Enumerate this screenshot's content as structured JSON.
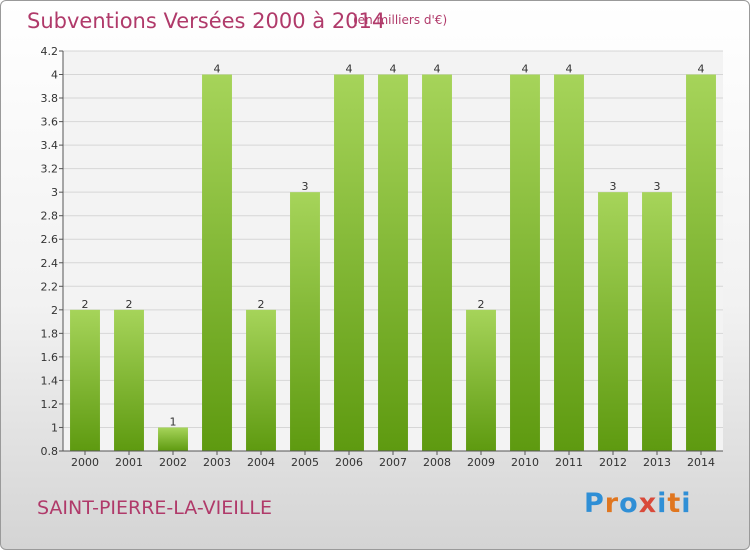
{
  "header": {
    "title": "Subventions Versées 2000 à 2014",
    "subtitle": "(en milliers d'€)"
  },
  "footer": {
    "commune": "SAINT-PIERRE-LA-VIEILLE",
    "logo": "Proxiti"
  },
  "colors": {
    "title": "#b03a6a",
    "bar_light": "#a6d45a",
    "bar_dark": "#5e9a10",
    "logo_letters": [
      "#2f8fd6",
      "#e0761f",
      "#2f8fd6",
      "#d94a3a",
      "#2f8fd6",
      "#e0761f",
      "#2f8fd6"
    ]
  },
  "chart_data": {
    "type": "bar",
    "title": "Subventions Versées 2000 à 2014",
    "subtitle": "(en milliers d'€)",
    "categories": [
      "2000",
      "2001",
      "2002",
      "2003",
      "2004",
      "2005",
      "2006",
      "2007",
      "2008",
      "2009",
      "2010",
      "2011",
      "2012",
      "2013",
      "2014"
    ],
    "values": [
      2,
      2,
      1,
      4,
      2,
      3,
      4,
      4,
      4,
      2,
      4,
      4,
      3,
      3,
      4
    ],
    "value_labels": [
      "2",
      "2",
      "1",
      "4",
      "2",
      "3",
      "4",
      "4",
      "4",
      "2",
      "4",
      "4",
      "3",
      "3",
      "4"
    ],
    "ylim": [
      0.8,
      4.2
    ],
    "yticks": [
      0.8,
      1,
      1.2,
      1.4,
      1.6,
      1.8,
      2,
      2.2,
      2.4,
      2.6,
      2.8,
      3,
      3.2,
      3.4,
      3.6,
      3.8,
      4,
      4.2
    ],
    "ytick_labels": [
      "0.8",
      "1",
      "1.2",
      "1.4",
      "1.6",
      "1.8",
      "2",
      "2.2",
      "2.4",
      "2.6",
      "2.8",
      "3",
      "3.2",
      "3.4",
      "3.6",
      "3.8",
      "4",
      "4.2"
    ],
    "xlabel": "",
    "ylabel": "",
    "grid": true
  }
}
